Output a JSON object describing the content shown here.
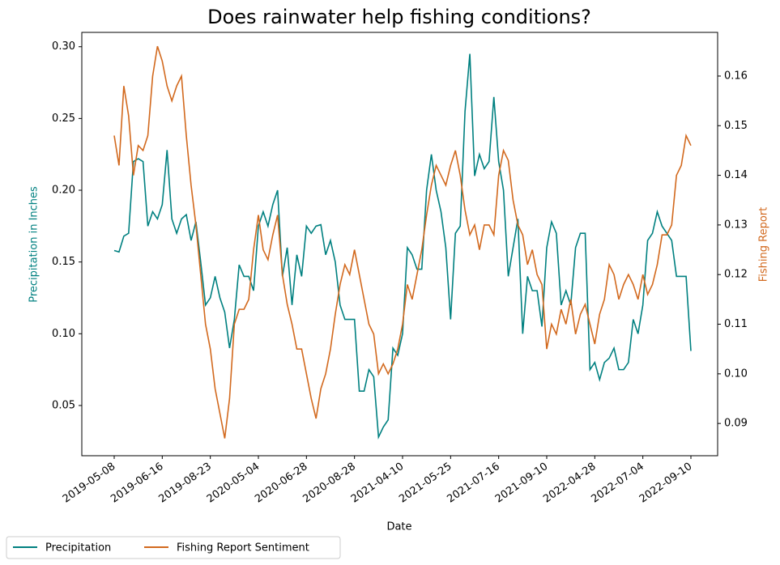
{
  "chart_data": {
    "type": "line",
    "title": "Does rainwater help fishing conditions?",
    "xlabel": "Date",
    "ylabel": "Precipitation in Inches",
    "y2label": "Fishing Report",
    "categories": [
      "2019-05-08",
      null,
      null,
      null,
      null,
      null,
      null,
      null,
      null,
      null,
      "2019-06-16",
      null,
      null,
      null,
      null,
      null,
      null,
      null,
      null,
      null,
      "2019-08-23",
      null,
      null,
      null,
      null,
      null,
      null,
      null,
      null,
      null,
      "2020-05-04",
      null,
      null,
      null,
      null,
      null,
      null,
      null,
      null,
      null,
      "2020-06-28",
      null,
      null,
      null,
      null,
      null,
      null,
      null,
      null,
      null,
      "2020-08-28",
      null,
      null,
      null,
      null,
      null,
      null,
      null,
      null,
      null,
      "2021-04-10",
      null,
      null,
      null,
      null,
      null,
      null,
      null,
      null,
      null,
      "2021-05-25",
      null,
      null,
      null,
      null,
      null,
      null,
      null,
      null,
      null,
      "2021-07-16",
      null,
      null,
      null,
      null,
      null,
      null,
      null,
      null,
      null,
      "2021-09-10",
      null,
      null,
      null,
      null,
      null,
      null,
      null,
      null,
      null,
      "2022-04-28",
      null,
      null,
      null,
      null,
      null,
      null,
      null,
      null,
      null,
      "2022-07-04",
      null,
      null,
      null,
      null,
      null,
      null,
      null,
      null,
      null,
      "2022-09-10"
    ],
    "series": [
      {
        "name": "Precipitation",
        "color": "#008080",
        "values": [
          0.158,
          0.157,
          0.168,
          0.17,
          0.22,
          0.222,
          0.22,
          0.175,
          0.185,
          0.18,
          0.19,
          0.228,
          0.18,
          0.17,
          0.18,
          0.183,
          0.165,
          0.178,
          0.15,
          0.12,
          0.125,
          0.14,
          0.125,
          0.115,
          0.09,
          0.11,
          0.148,
          0.14,
          0.14,
          0.13,
          0.175,
          0.185,
          0.175,
          0.19,
          0.2,
          0.14,
          0.16,
          0.12,
          0.155,
          0.14,
          0.175,
          0.17,
          0.175,
          0.176,
          0.155,
          0.165,
          0.15,
          0.12,
          0.11,
          0.11,
          0.11,
          0.06,
          0.06,
          0.075,
          0.07,
          0.028,
          0.035,
          0.04,
          0.09,
          0.085,
          0.1,
          0.16,
          0.155,
          0.145,
          0.145,
          0.2,
          0.225,
          0.2,
          0.185,
          0.16,
          0.11,
          0.17,
          0.175,
          0.255,
          0.295,
          0.21,
          0.225,
          0.215,
          0.22,
          0.265,
          0.22,
          0.2,
          0.14,
          0.16,
          0.18,
          0.1,
          0.14,
          0.13,
          0.13,
          0.105,
          0.16,
          0.178,
          0.17,
          0.12,
          0.13,
          0.12,
          0.16,
          0.17,
          0.17,
          0.075,
          0.08,
          0.068,
          0.08,
          0.083,
          0.09,
          0.075,
          0.075,
          0.08,
          0.11,
          0.1,
          0.12,
          0.165,
          0.17,
          0.185,
          0.175,
          0.17,
          0.165,
          0.14,
          0.14,
          0.14,
          0.088
        ]
      },
      {
        "name": "Fishing Report Sentiment",
        "color": "#d2691e",
        "axis": "y2",
        "values": [
          0.148,
          0.142,
          0.158,
          0.152,
          0.14,
          0.146,
          0.145,
          0.148,
          0.16,
          0.166,
          0.163,
          0.158,
          0.155,
          0.158,
          0.16,
          0.148,
          0.138,
          0.13,
          0.12,
          0.11,
          0.105,
          0.097,
          0.092,
          0.087,
          0.095,
          0.11,
          0.113,
          0.113,
          0.115,
          0.125,
          0.132,
          0.125,
          0.123,
          0.128,
          0.132,
          0.12,
          0.114,
          0.11,
          0.105,
          0.105,
          0.1,
          0.095,
          0.091,
          0.097,
          0.1,
          0.105,
          0.112,
          0.118,
          0.122,
          0.12,
          0.125,
          0.12,
          0.115,
          0.11,
          0.108,
          0.1,
          0.102,
          0.1,
          0.102,
          0.105,
          0.11,
          0.118,
          0.115,
          0.12,
          0.125,
          0.132,
          0.138,
          0.142,
          0.14,
          0.138,
          0.142,
          0.145,
          0.14,
          0.133,
          0.128,
          0.13,
          0.125,
          0.13,
          0.13,
          0.128,
          0.14,
          0.145,
          0.143,
          0.135,
          0.13,
          0.128,
          0.122,
          0.125,
          0.12,
          0.118,
          0.105,
          0.11,
          0.108,
          0.113,
          0.11,
          0.115,
          0.108,
          0.112,
          0.114,
          0.11,
          0.106,
          0.112,
          0.115,
          0.122,
          0.12,
          0.115,
          0.118,
          0.12,
          0.118,
          0.115,
          0.12,
          0.116,
          0.118,
          0.122,
          0.128,
          0.128,
          0.13,
          0.14,
          0.142,
          0.148,
          0.146
        ]
      }
    ],
    "ylim": [
      0.015,
      0.31
    ],
    "yticks": [
      0.05,
      {
        "value": 0.1,
        "label": "0.10"
      },
      0.15,
      {
        "value": 0.2,
        "label": "0.20"
      },
      0.25,
      {
        "value": 0.3,
        "label": "0.30"
      }
    ],
    "y2lim": [
      0.0835,
      0.1688
    ],
    "y2ticks": [
      0.09,
      {
        "value": 0.1,
        "label": "0.10"
      },
      0.11,
      0.12,
      0.13,
      0.14,
      0.15,
      0.16
    ],
    "grid": false,
    "legend": "lower left outside"
  }
}
